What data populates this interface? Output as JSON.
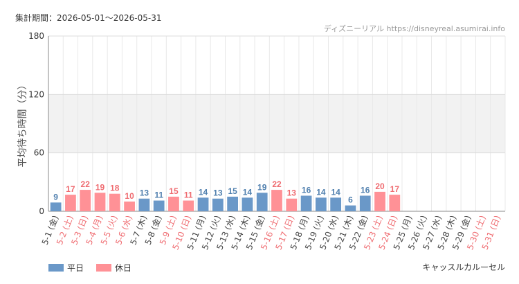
{
  "header": {
    "period": "集計期間：2026-05-01～2026-05-31",
    "source": "ディズニーリアル https://disneyreal.asumirai.info"
  },
  "attraction": "キャッスルカルーセル",
  "legend": {
    "weekday": "平日",
    "holiday": "休日"
  },
  "colors": {
    "weekday": "#6a98c8",
    "holiday": "#ff9196",
    "weekday_label": "#4f7fae",
    "holiday_label": "#ef6b70"
  },
  "chart_data": {
    "type": "bar",
    "ylabel": "平均待ち時間（分）",
    "ylim": [
      0,
      180
    ],
    "yticks": [
      "0",
      "60",
      "120",
      "180"
    ],
    "grid": true,
    "categories": [
      "5-1 (金)",
      "5-2 (土)",
      "5-3 (日)",
      "5-4 (月)",
      "5-5 (火)",
      "5-6 (水)",
      "5-7 (木)",
      "5-8 (金)",
      "5-9 (土)",
      "5-10 (日)",
      "5-11 (月)",
      "5-12 (火)",
      "5-13 (水)",
      "5-14 (木)",
      "5-15 (金)",
      "5-16 (土)",
      "5-17 (日)",
      "5-18 (月)",
      "5-19 (火)",
      "5-20 (水)",
      "5-21 (木)",
      "5-22 (金)",
      "5-23 (土)",
      "5-24 (日)",
      "5-25 (月)",
      "5-26 (火)",
      "5-27 (水)",
      "5-28 (木)",
      "5-29 (金)",
      "5-30 (土)",
      "5-31 (日)"
    ],
    "values": [
      9,
      17,
      22,
      19,
      18,
      10,
      13,
      11,
      15,
      11,
      14,
      13,
      15,
      14,
      19,
      22,
      13,
      16,
      14,
      14,
      6,
      16,
      20,
      17,
      null,
      null,
      null,
      null,
      null,
      null,
      null
    ],
    "day_type": [
      "weekday",
      "holiday",
      "holiday",
      "holiday",
      "holiday",
      "holiday",
      "weekday",
      "weekday",
      "holiday",
      "holiday",
      "weekday",
      "weekday",
      "weekday",
      "weekday",
      "weekday",
      "holiday",
      "holiday",
      "weekday",
      "weekday",
      "weekday",
      "weekday",
      "weekday",
      "holiday",
      "holiday",
      "weekday",
      "weekday",
      "weekday",
      "weekday",
      "weekday",
      "holiday",
      "holiday"
    ]
  }
}
